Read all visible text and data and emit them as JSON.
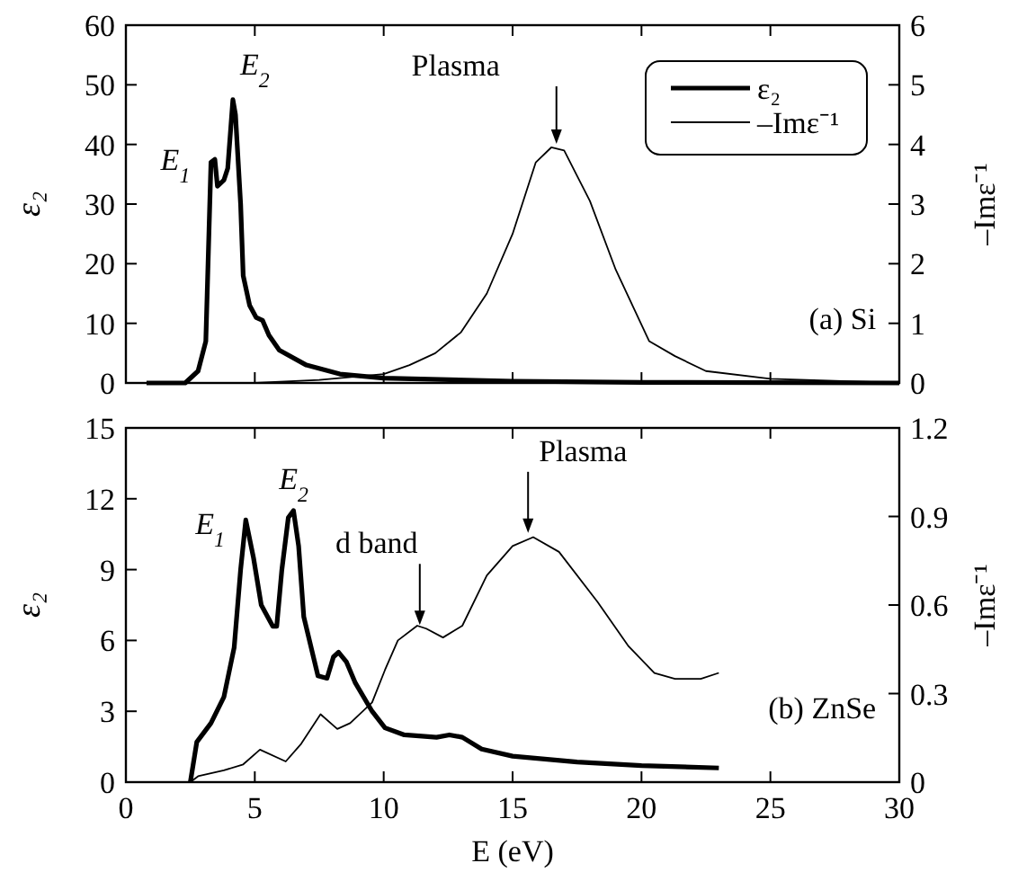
{
  "chart_data": [
    {
      "type": "line",
      "ylabel": "ε₂",
      "y2label": "–Imε⁻¹",
      "xlim": [
        0,
        30
      ],
      "xticks": [
        0,
        5,
        10,
        15,
        20,
        25,
        30
      ],
      "ylim": [
        0,
        60
      ],
      "yticks": [
        0,
        10,
        20,
        30,
        40,
        50,
        60
      ],
      "y2lim": [
        0,
        6
      ],
      "y2ticks": [
        0,
        1,
        2,
        3,
        4,
        5,
        6
      ],
      "tick_labels": "y",
      "legend": "top right",
      "annotations": [
        {
          "text": "E$_{1}$",
          "x": 3.3,
          "y": 37
        },
        {
          "text": "E$_{2}$",
          "x": 4.15,
          "y": 47.5
        },
        {
          "text": "Plasma",
          "x": 16.7,
          "y": 39.5
        },
        "(a) Si"
      ],
      "series": [
        {
          "name": "ε₂",
          "color": "#000000",
          "x": [
            0.8,
            2.3,
            2.8,
            3.1,
            3.3,
            3.45,
            3.55,
            3.8,
            3.95,
            4.15,
            4.25,
            4.45,
            4.55,
            4.8,
            5.05,
            5.3,
            5.55,
            5.95,
            7,
            8.3,
            10,
            15,
            20,
            30
          ],
          "values": [
            0,
            0,
            2,
            7,
            37,
            37.5,
            33,
            34,
            36,
            47.5,
            45,
            30,
            18,
            13,
            11,
            10.5,
            8,
            5.5,
            3,
            1.5,
            0.8,
            0.3,
            0.1,
            0
          ]
        },
        {
          "name": "–Imε⁻¹",
          "color": "#000000",
          "axis": "y2",
          "x": [
            5,
            7.5,
            10,
            11,
            12,
            13,
            14,
            15,
            15.9,
            16.5,
            17,
            18,
            19,
            20.3,
            21.3,
            22.5,
            25,
            30
          ],
          "values": [
            0,
            0.05,
            0.15,
            0.3,
            0.5,
            0.85,
            1.5,
            2.5,
            3.7,
            3.95,
            3.9,
            3.05,
            1.9,
            0.7,
            0.45,
            0.2,
            0.07,
            0
          ]
        }
      ]
    },
    {
      "type": "line",
      "ylabel": "ε₂",
      "y2label": "–Imε⁻¹",
      "xlabel": "E (eV)",
      "xlim": [
        0,
        30
      ],
      "xticks": [
        0,
        5,
        10,
        15,
        20,
        25,
        30
      ],
      "ylim": [
        0,
        15
      ],
      "yticks": [
        0,
        3,
        6,
        9,
        12,
        15
      ],
      "y2lim": [
        0,
        1.2
      ],
      "y2ticks": [
        0,
        0.3,
        0.6,
        0.9,
        1.2
      ],
      "annotations": [
        {
          "text": "E$_{1}$",
          "x": 4.65,
          "y": 11.1
        },
        {
          "text": "E$_{2}$",
          "x": 6.5,
          "y": 11.5
        },
        {
          "text": "d band",
          "x": 11.4,
          "y": 6.5
        },
        {
          "text": "Plasma",
          "x": 15.6,
          "y": 10.4
        },
        "(b) ZnSe"
      ],
      "series": [
        {
          "color": "#000000",
          "x": [
            2.5,
            2.75,
            3.3,
            3.8,
            4.2,
            4.45,
            4.65,
            4.95,
            5.25,
            5.7,
            5.85,
            6.05,
            6.3,
            6.5,
            6.7,
            6.9,
            7.45,
            7.8,
            8.05,
            8.25,
            8.55,
            8.9,
            9.55,
            10.05,
            10.8,
            12.05,
            12.55,
            13.05,
            13.8,
            15,
            17.5,
            20,
            23
          ],
          "values": [
            0,
            1.7,
            2.5,
            3.6,
            5.7,
            9,
            11.1,
            9.5,
            7.5,
            6.6,
            6.6,
            9,
            11.2,
            11.5,
            10,
            7,
            4.5,
            4.4,
            5.3,
            5.5,
            5.1,
            4.2,
            3,
            2.3,
            2,
            1.9,
            2,
            1.9,
            1.4,
            1.1,
            0.85,
            0.7,
            0.6
          ]
        },
        {
          "color": "#000000",
          "axis": "y2",
          "x": [
            2.5,
            2.8,
            3.8,
            4.55,
            5.2,
            6.2,
            6.8,
            7.55,
            8.2,
            8.7,
            9.55,
            10.05,
            10.55,
            11.3,
            11.65,
            12.3,
            13.05,
            14,
            15,
            15.8,
            16.8,
            18.3,
            19.5,
            20.5,
            21.3,
            22.3,
            23
          ],
          "values": [
            0,
            0.02,
            0.04,
            0.06,
            0.11,
            0.07,
            0.13,
            0.23,
            0.18,
            0.2,
            0.27,
            0.38,
            0.48,
            0.53,
            0.52,
            0.49,
            0.53,
            0.7,
            0.8,
            0.83,
            0.78,
            0.61,
            0.46,
            0.37,
            0.35,
            0.35,
            0.37
          ]
        }
      ]
    }
  ]
}
